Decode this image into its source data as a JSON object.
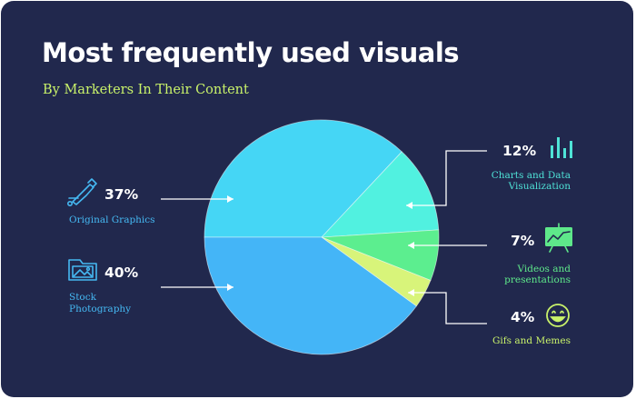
{
  "header": {
    "title": "Most frequently used visuals",
    "subtitle": "By Marketers In Their Content"
  },
  "colors": {
    "background": "#21284d",
    "title": "#ffffff",
    "subtitle": "#c9f26a",
    "connector": "#ffffff"
  },
  "chart_data": {
    "type": "pie",
    "title": "Most frequently used visuals",
    "subtitle": "By Marketers In Their Content",
    "slices": [
      {
        "label": "Original Graphics",
        "percent_label": "37%",
        "value": 37,
        "color": "#45d6f5",
        "label_color": "#45b8f2",
        "icon": "pen-tool-icon"
      },
      {
        "label": "Charts and Data Visualization",
        "label_lines": [
          "Charts and Data",
          "Visualization"
        ],
        "percent_label": "12%",
        "value": 12,
        "color": "#51f1e0",
        "label_color": "#4fe3d7",
        "icon": "bar-chart-icon"
      },
      {
        "label": "Videos and presentations",
        "label_lines": [
          "Videos and",
          "presentations"
        ],
        "percent_label": "7%",
        "value": 7,
        "color": "#5cee8f",
        "label_color": "#5ee88a",
        "icon": "presentation-board-icon"
      },
      {
        "label": "Gifs and Memes",
        "percent_label": "4%",
        "value": 4,
        "color": "#d8f47a",
        "label_color": "#c9f26a",
        "icon": "smiley-icon"
      },
      {
        "label": "Stock Photography",
        "label_lines": [
          "Stock",
          "Photography"
        ],
        "percent_label": "40%",
        "value": 40,
        "color": "#44b5f7",
        "label_color": "#45b8f2",
        "icon": "photo-folder-icon"
      }
    ]
  }
}
